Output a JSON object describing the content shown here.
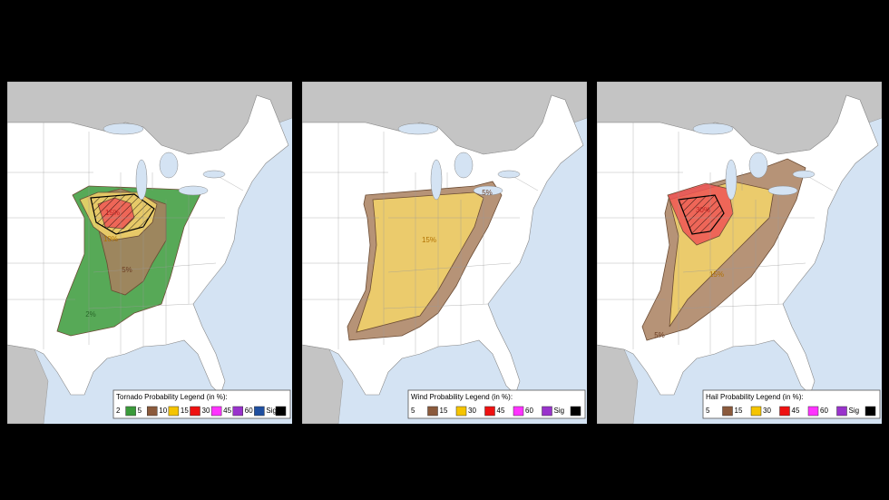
{
  "panels": [
    {
      "legend": {
        "title": "Tornado Probability Legend (in %):",
        "items": [
          {
            "label": "2",
            "color": "#3a9a3a"
          },
          {
            "label": "5",
            "color": "#8b5a3c"
          },
          {
            "label": "10",
            "color": "#f5c400"
          },
          {
            "label": "15",
            "color": "#ee1111"
          },
          {
            "label": "30",
            "color": "#ff33ff"
          },
          {
            "label": "45",
            "color": "#9933cc"
          },
          {
            "label": "60",
            "color": "#1f4fa0"
          },
          {
            "label": "Sig",
            "color": "#000000"
          }
        ]
      },
      "map_labels": [
        "15%",
        "10%",
        "5%",
        "2%"
      ]
    },
    {
      "legend": {
        "title": "Wind Probability Legend (in %):",
        "items": [
          {
            "label": "5",
            "color": "#8b5a3c"
          },
          {
            "label": "15",
            "color": "#f5c400"
          },
          {
            "label": "30",
            "color": "#ee1111"
          },
          {
            "label": "45",
            "color": "#ff33ff"
          },
          {
            "label": "60",
            "color": "#9933cc"
          },
          {
            "label": "Sig",
            "color": "#000000"
          }
        ]
      },
      "map_labels": [
        "15%",
        "5%"
      ]
    },
    {
      "legend": {
        "title": "Hail Probability Legend (in %):",
        "items": [
          {
            "label": "5",
            "color": "#8b5a3c"
          },
          {
            "label": "15",
            "color": "#f5c400"
          },
          {
            "label": "30",
            "color": "#ee1111"
          },
          {
            "label": "45",
            "color": "#ff33ff"
          },
          {
            "label": "60",
            "color": "#9933cc"
          },
          {
            "label": "Sig",
            "color": "#000000"
          }
        ]
      },
      "map_labels": [
        "30%",
        "15%",
        "5%"
      ]
    }
  ]
}
